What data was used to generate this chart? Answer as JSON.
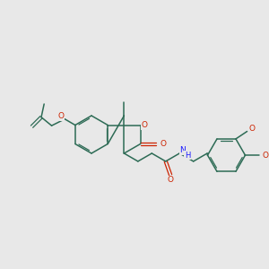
{
  "background_color": "#e8e8e8",
  "bond_color": "#2d6b55",
  "oxygen_color": "#cc2200",
  "nitrogen_color": "#1a1aff",
  "figsize": [
    3.0,
    3.0
  ],
  "dpi": 100,
  "xlim": [
    0.0,
    10.0
  ],
  "ylim": [
    2.5,
    7.5
  ]
}
